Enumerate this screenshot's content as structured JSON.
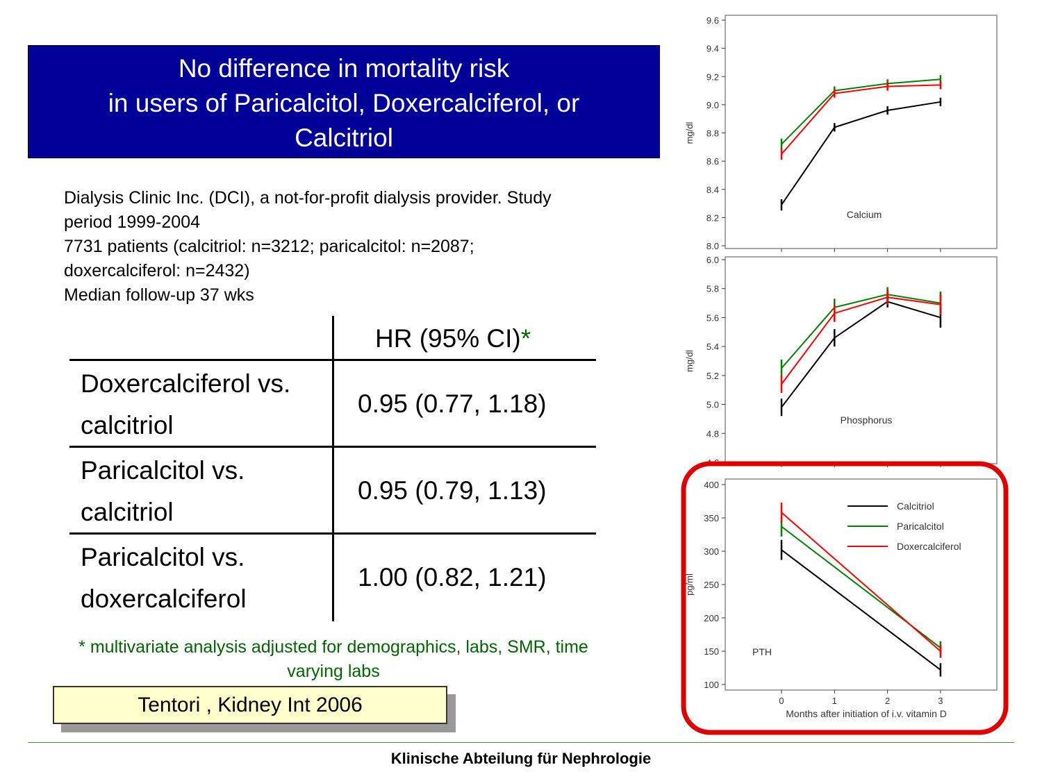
{
  "title": {
    "line1": "No difference in mortality risk",
    "line2": "in users of Paricalcitol, Doxercalciferol, or",
    "line3": "Calcitriol"
  },
  "study_info": {
    "line1": "Dialysis Clinic Inc. (DCI), a not-for-profit dialysis provider. Study",
    "line2": "period 1999-2004",
    "line3": "7731 patients (calcitriol: n=3212; paricalcitol: n=2087;",
    "line4": "doxercalciferol: n=2432)",
    "line5": "Median follow-up 37 wks"
  },
  "table": {
    "header": "HR (95% CI)",
    "header_marker": "*",
    "rows": [
      {
        "line1": "Doxercalciferol vs.",
        "line2": "calcitriol",
        "hr": "0.95 (0.77, 1.18)"
      },
      {
        "line1": "Paricalcitol vs.",
        "line2": "calcitriol",
        "hr": "0.95 (0.79, 1.13)"
      },
      {
        "line1": "Paricalcitol vs.",
        "line2": "doxercalciferol",
        "hr": "1.00 (0.82, 1.21)"
      }
    ]
  },
  "footnote": {
    "line1": "* multivariate analysis adjusted for demographics, labs, SMR, time",
    "line2": "varying labs"
  },
  "citation": "Tentori , Kidney Int  2006",
  "footer": "Klinische Abteilung für Nephrologie",
  "colors": {
    "title_bg": "#000099",
    "calcitriol": "#000000",
    "paricalcitol": "#008000",
    "doxercalciferol": "#ff0000",
    "highlight": "#e00000",
    "footnote": "#006600",
    "citation_bg": "#ffffcc"
  },
  "chart_data": [
    {
      "type": "line",
      "label": "Calcium",
      "ylabel": "mg/dl",
      "ylim": [
        8.0,
        9.6
      ],
      "yticks": [
        "8.0",
        "8.2",
        "8.4",
        "8.6",
        "8.8",
        "9.0",
        "9.2",
        "9.4",
        "9.6"
      ],
      "x": [
        0,
        1,
        2,
        3
      ],
      "series": [
        {
          "key": "calcitriol",
          "values": [
            8.29,
            8.84,
            8.96,
            9.02
          ],
          "err": [
            0.04,
            0.03,
            0.03,
            0.03
          ]
        },
        {
          "key": "paricalcitol",
          "values": [
            8.72,
            9.1,
            9.15,
            9.18
          ],
          "err": [
            0.04,
            0.03,
            0.03,
            0.03
          ]
        },
        {
          "key": "doxercalciferol",
          "values": [
            8.65,
            9.08,
            9.13,
            9.14
          ],
          "err": [
            0.04,
            0.03,
            0.03,
            0.03
          ]
        }
      ]
    },
    {
      "type": "line",
      "label": "Phosphorus",
      "ylabel": "mg/dl",
      "ylim": [
        4.6,
        6.0
      ],
      "yticks": [
        "4.6",
        "4.8",
        "5.0",
        "5.2",
        "5.4",
        "5.6",
        "5.8",
        "6.0"
      ],
      "x": [
        0,
        1,
        2,
        3
      ],
      "series": [
        {
          "key": "calcitriol",
          "values": [
            4.98,
            5.46,
            5.71,
            5.6
          ],
          "err": [
            0.06,
            0.06,
            0.04,
            0.07
          ]
        },
        {
          "key": "paricalcitol",
          "values": [
            5.25,
            5.67,
            5.76,
            5.7
          ],
          "err": [
            0.06,
            0.06,
            0.05,
            0.08
          ]
        },
        {
          "key": "doxercalciferol",
          "values": [
            5.14,
            5.63,
            5.74,
            5.69
          ],
          "err": [
            0.06,
            0.06,
            0.05,
            0.07
          ]
        }
      ]
    },
    {
      "type": "line",
      "label": "PTH",
      "ylabel": "pg/ml",
      "xlabel": "Months after initiation of i.v. vitamin D",
      "ylim": [
        100,
        400
      ],
      "yticks": [
        "100",
        "150",
        "200",
        "250",
        "300",
        "350",
        "400"
      ],
      "x": [
        0,
        3
      ],
      "xticks": [
        "0",
        "1",
        "2",
        "3"
      ],
      "legend": [
        "Calcitriol",
        "Paricalcitol",
        "Doxercalciferol"
      ],
      "legend_position": "top-right",
      "series": [
        {
          "name": "Calcitriol",
          "key": "calcitriol",
          "values": [
            302,
            122
          ],
          "err": [
            15,
            10
          ]
        },
        {
          "name": "Paricalcitol",
          "key": "paricalcitol",
          "values": [
            337,
            155
          ],
          "err": [
            15,
            10
          ]
        },
        {
          "name": "Doxercalciferol",
          "key": "doxercalciferol",
          "values": [
            358,
            150
          ],
          "err": [
            15,
            10
          ]
        }
      ]
    }
  ]
}
